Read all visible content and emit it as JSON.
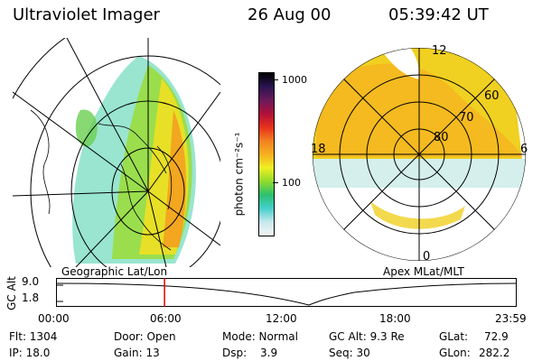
{
  "header": {
    "instrument": "Ultraviolet Imager",
    "date": "26 Aug 00",
    "time": "05:39:42 UT"
  },
  "colorbar": {
    "unit_label": "photon cm⁻²s⁻¹",
    "ticks": [
      "1000",
      "100"
    ],
    "gradient_stops": [
      "#f4f4f4",
      "#c8e8ec",
      "#45d0cc",
      "#2bc070",
      "#8fdc2c",
      "#f0ee22",
      "#f7b020",
      "#f28020",
      "#e8301c",
      "#b0103a",
      "#6a1a5a",
      "#2a1450",
      "#000000"
    ]
  },
  "geo_map": {
    "caption": "Geographic Lat/Lon"
  },
  "polar_map": {
    "caption": "Apex MLat/MLT",
    "lat_labels": [
      "60",
      "70",
      "80"
    ],
    "mlt_labels": [
      "12",
      "18",
      "6",
      "0"
    ]
  },
  "altitude_plot": {
    "ylabel": "GC Alt",
    "y_ticks": [
      "9.0",
      "1.8"
    ],
    "x_ticks": [
      "00:00",
      "06:00",
      "12:00",
      "18:00",
      "23:59"
    ],
    "marker_time": "05:39",
    "marker_color": "#e00000"
  },
  "status": {
    "flt": "Flt: 1304",
    "ip": "IP: 18.0",
    "door": "Door: Open",
    "gain": "Gain: 13",
    "mode": "Mode: Normal",
    "dsp_label": "Dsp:",
    "dsp_value": "3.9",
    "gc_alt": "GC Alt: 9.3 Re",
    "seq": "Seq: 30",
    "glat_label": "GLat:",
    "glat_value": "72.9",
    "glon_label": "GLon:",
    "glon_value": "282.2"
  }
}
